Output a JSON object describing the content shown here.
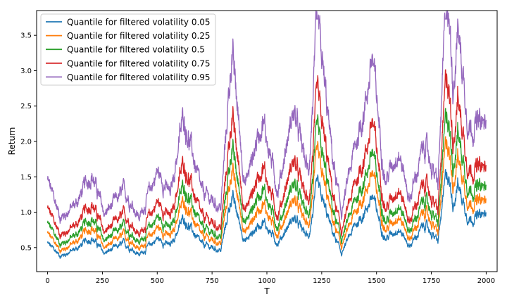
{
  "chart_data": {
    "type": "line",
    "title": "",
    "xlabel": "T",
    "ylabel": "Return",
    "xlim": [
      -50,
      2050
    ],
    "ylim": [
      0.16,
      3.85
    ],
    "x_ticks": [
      0,
      250,
      500,
      750,
      1000,
      1250,
      1500,
      1750,
      2000
    ],
    "y_ticks": [
      0.5,
      1.0,
      1.5,
      2.0,
      2.5,
      3.0,
      3.5
    ],
    "grid": false,
    "legend_position": "top-left",
    "x_range": [
      0,
      2000
    ],
    "anchor_x": [
      0,
      60,
      130,
      200,
      260,
      350,
      420,
      500,
      560,
      620,
      700,
      790,
      840,
      900,
      980,
      1050,
      1120,
      1190,
      1230,
      1300,
      1340,
      1400,
      1450,
      1480,
      1540,
      1600,
      1650,
      1720,
      1780,
      1820,
      1850,
      1870,
      1920,
      2000
    ],
    "series": [
      {
        "name": "Quantile for filtered volatility 0.05",
        "color": "#1f77b4",
        "values": [
          0.56,
          0.38,
          0.48,
          0.64,
          0.42,
          0.56,
          0.4,
          0.63,
          0.52,
          0.92,
          0.55,
          0.46,
          1.24,
          0.58,
          0.88,
          0.56,
          0.92,
          0.64,
          1.38,
          0.72,
          0.42,
          0.8,
          1.02,
          1.23,
          0.62,
          0.78,
          0.52,
          0.83,
          0.58,
          1.6,
          1.12,
          1.4,
          0.9,
          0.97
        ]
      },
      {
        "name": "Quantile for filtered volatility 0.25",
        "color": "#ff7f0e",
        "values": [
          0.7,
          0.46,
          0.58,
          0.8,
          0.5,
          0.68,
          0.48,
          0.79,
          0.64,
          1.17,
          0.67,
          0.56,
          1.61,
          0.7,
          1.14,
          0.68,
          1.19,
          0.79,
          1.81,
          0.89,
          0.52,
          0.98,
          1.28,
          1.57,
          0.74,
          0.97,
          0.62,
          1.02,
          0.7,
          2.07,
          1.4,
          1.79,
          1.12,
          1.16
        ]
      },
      {
        "name": "Quantile for filtered volatility 0.5",
        "color": "#2ca02c",
        "values": [
          0.84,
          0.55,
          0.68,
          0.93,
          0.6,
          0.8,
          0.57,
          0.94,
          0.75,
          1.39,
          0.79,
          0.65,
          1.93,
          0.83,
          1.36,
          0.79,
          1.42,
          0.93,
          2.15,
          1.05,
          0.61,
          1.14,
          1.5,
          1.87,
          0.86,
          1.13,
          0.73,
          1.19,
          0.83,
          2.47,
          1.66,
          2.14,
          1.32,
          1.35
        ]
      },
      {
        "name": "Quantile for filtered volatility 0.75",
        "color": "#d62728",
        "values": [
          1.05,
          0.68,
          0.82,
          1.14,
          0.72,
          0.97,
          0.68,
          1.15,
          0.91,
          1.71,
          0.95,
          0.78,
          2.37,
          1.0,
          1.67,
          0.95,
          1.74,
          1.12,
          2.65,
          1.27,
          0.73,
          1.38,
          1.83,
          2.3,
          1.04,
          1.37,
          0.87,
          1.43,
          1.0,
          3.02,
          2.02,
          2.62,
          1.61,
          1.62
        ]
      },
      {
        "name": "Quantile for filtered volatility 0.95",
        "color": "#9467bd",
        "values": [
          1.45,
          0.92,
          1.12,
          1.55,
          0.97,
          1.31,
          0.92,
          1.58,
          1.24,
          2.37,
          1.3,
          1.06,
          3.28,
          1.37,
          2.33,
          1.3,
          2.43,
          1.54,
          3.69,
          1.75,
          0.99,
          1.89,
          2.54,
          3.2,
          1.43,
          1.89,
          1.18,
          1.97,
          1.37,
          4.2,
          2.8,
          3.64,
          2.22,
          2.24
        ]
      }
    ]
  }
}
